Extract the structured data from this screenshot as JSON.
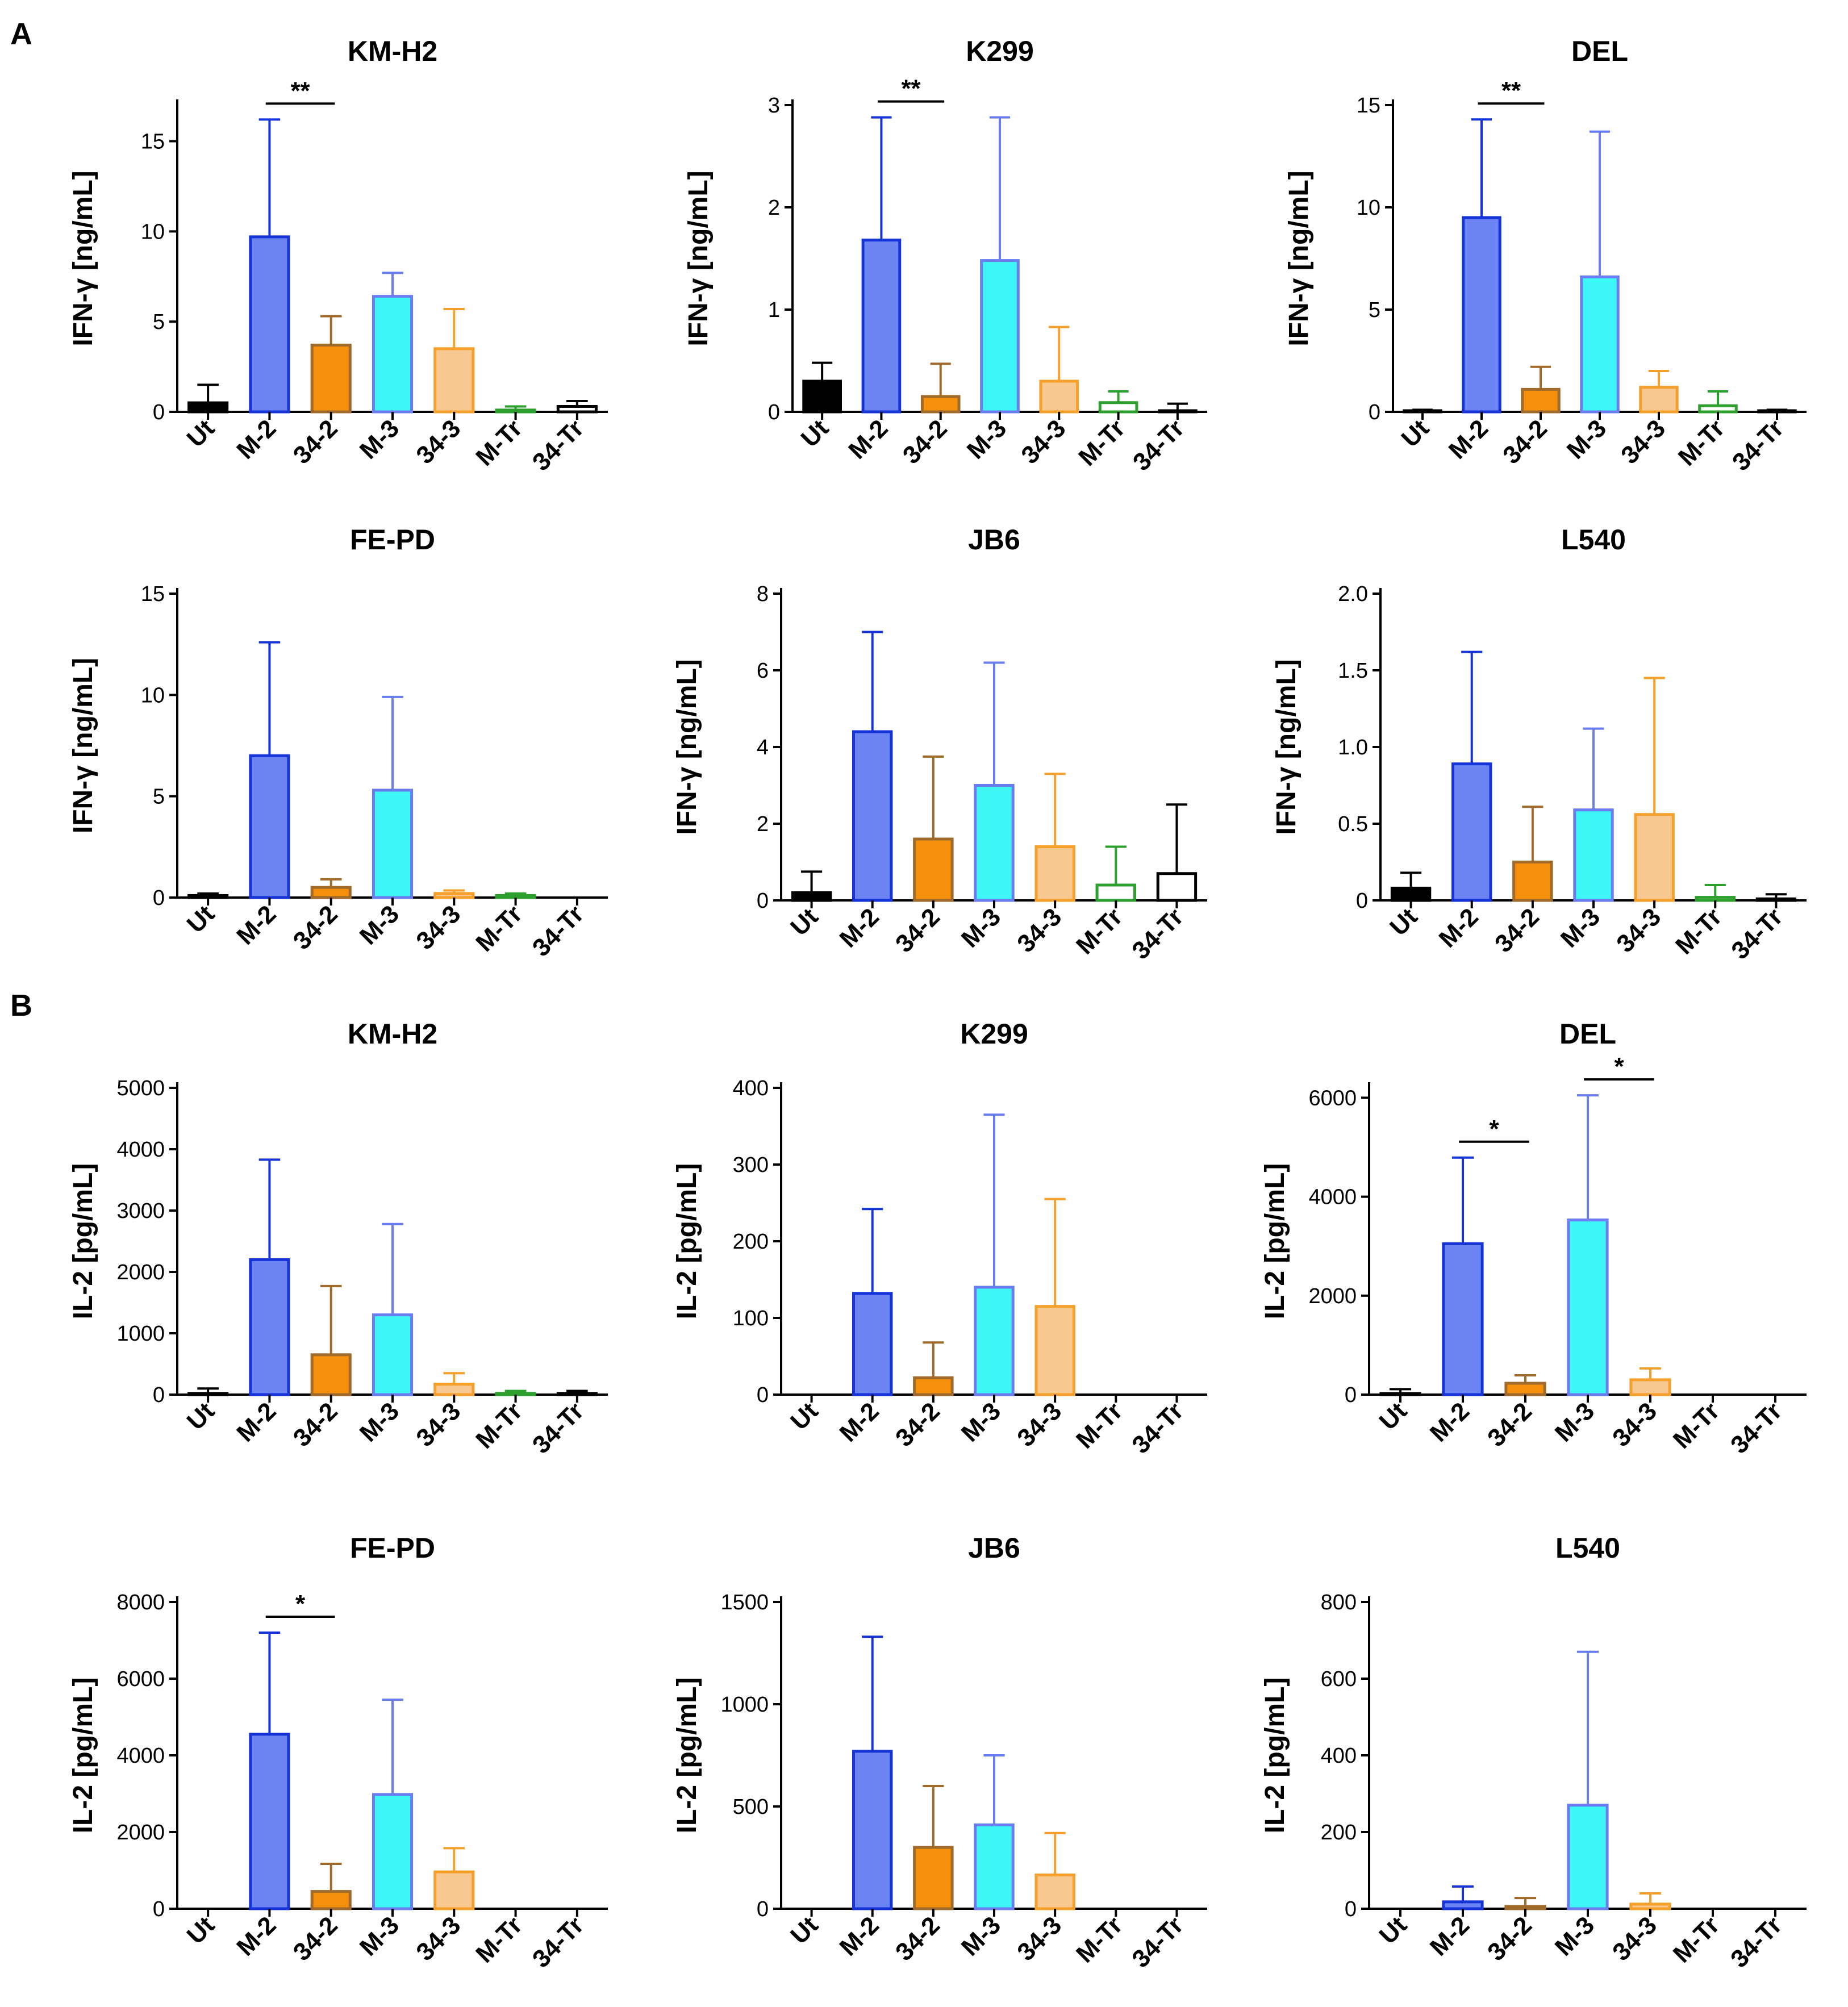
{
  "panel_labels": [
    "A",
    "B"
  ],
  "groups": [
    "Ut",
    "M-2",
    "34-2",
    "M-3",
    "34-3",
    "M-Tr",
    "34-Tr"
  ],
  "colors": {
    "Ut": {
      "stroke": "#000000",
      "fill": "#000000"
    },
    "M-2": {
      "stroke": "#1533d6",
      "fill": "#6b84f2"
    },
    "34-2": {
      "stroke": "#a06a2a",
      "fill": "#f5900c"
    },
    "M-3": {
      "stroke": "#6a7df0",
      "fill": "#3ef6f6"
    },
    "34-3": {
      "stroke": "#f5a02a",
      "fill": "#f7c890"
    },
    "M-Tr": {
      "stroke": "#2ca02c",
      "fill": "#ffffff"
    },
    "34-Tr": {
      "stroke": "#000000",
      "fill": "#ffffff"
    },
    "axis": "#000000"
  },
  "chart_data": [
    {
      "panel": "A",
      "type": "bar",
      "title": "KM-H2",
      "ylabel": "IFN-γ [ng/mL]",
      "ylim": [
        0,
        17
      ],
      "yticks": [
        "0",
        "5",
        "10",
        "15"
      ],
      "ytick_values": [
        0,
        5,
        10,
        15
      ],
      "categories": [
        "Ut",
        "M-2",
        "34-2",
        "M-3",
        "34-3",
        "M-Tr",
        "34-Tr"
      ],
      "values": [
        0.5,
        9.7,
        3.7,
        6.4,
        3.5,
        0.1,
        0.3
      ],
      "errors": [
        1.0,
        6.5,
        1.6,
        1.3,
        2.2,
        0.2,
        0.3
      ],
      "significance": [
        {
          "from": "M-2",
          "to": "34-2",
          "label": "**"
        }
      ]
    },
    {
      "panel": "A",
      "type": "bar",
      "title": "K299",
      "ylabel": "IFN-γ [ng/mL]",
      "ylim": [
        0,
        3
      ],
      "yticks": [
        "0",
        "1",
        "2",
        "3"
      ],
      "ytick_values": [
        0,
        1,
        2,
        3
      ],
      "categories": [
        "Ut",
        "M-2",
        "34-2",
        "M-3",
        "34-3",
        "M-Tr",
        "34-Tr"
      ],
      "values": [
        0.3,
        1.68,
        0.15,
        1.48,
        0.3,
        0.09,
        0.01
      ],
      "errors": [
        0.18,
        1.2,
        0.32,
        1.4,
        0.53,
        0.11,
        0.07
      ],
      "significance": [
        {
          "from": "M-2",
          "to": "34-2",
          "label": "**"
        }
      ]
    },
    {
      "panel": "A",
      "type": "bar",
      "title": "DEL",
      "ylabel": "IFN-γ [ng/mL]",
      "ylim": [
        0,
        15
      ],
      "yticks": [
        "0",
        "5",
        "10",
        "15"
      ],
      "ytick_values": [
        0,
        5,
        10,
        15
      ],
      "categories": [
        "Ut",
        "M-2",
        "34-2",
        "M-3",
        "34-3",
        "M-Tr",
        "34-Tr"
      ],
      "values": [
        0.05,
        9.5,
        1.1,
        6.6,
        1.2,
        0.3,
        0.05
      ],
      "errors": [
        0.05,
        4.8,
        1.1,
        7.1,
        0.8,
        0.7,
        0.05
      ],
      "significance": [
        {
          "from": "M-2",
          "to": "34-2",
          "label": "**"
        }
      ]
    },
    {
      "panel": "A",
      "type": "bar",
      "title": "FE-PD",
      "ylabel": "IFN-γ [ng/mL]",
      "ylim": [
        0,
        15
      ],
      "yticks": [
        "0",
        "5",
        "10",
        "15"
      ],
      "ytick_values": [
        0,
        5,
        10,
        15
      ],
      "categories": [
        "Ut",
        "M-2",
        "34-2",
        "M-3",
        "34-3",
        "M-Tr",
        "34-Tr"
      ],
      "values": [
        0.1,
        7.0,
        0.5,
        5.3,
        0.2,
        0.1,
        0.0
      ],
      "errors": [
        0.1,
        5.6,
        0.4,
        4.6,
        0.15,
        0.1,
        0.0
      ],
      "significance": []
    },
    {
      "panel": "A",
      "type": "bar",
      "title": "JB6",
      "ylabel": "IFN-γ [ng/mL]",
      "ylim": [
        0,
        8
      ],
      "yticks": [
        "0",
        "2",
        "4",
        "6",
        "8"
      ],
      "ytick_values": [
        0,
        2,
        4,
        6,
        8
      ],
      "categories": [
        "Ut",
        "M-2",
        "34-2",
        "M-3",
        "34-3",
        "M-Tr",
        "34-Tr"
      ],
      "values": [
        0.2,
        4.4,
        1.6,
        3.0,
        1.4,
        0.4,
        0.7
      ],
      "errors": [
        0.55,
        2.6,
        2.15,
        3.2,
        1.9,
        1.0,
        1.8
      ],
      "significance": []
    },
    {
      "panel": "A",
      "type": "bar",
      "title": "L540",
      "ylabel": "IFN-γ [ng/mL]",
      "ylim": [
        0,
        2.0
      ],
      "yticks": [
        "0",
        "0.5",
        "1.0",
        "1.5",
        "2.0"
      ],
      "ytick_values": [
        0,
        0.5,
        1.0,
        1.5,
        2.0
      ],
      "categories": [
        "Ut",
        "M-2",
        "34-2",
        "M-3",
        "34-3",
        "M-Tr",
        "34-Tr"
      ],
      "values": [
        0.08,
        0.89,
        0.25,
        0.59,
        0.56,
        0.02,
        0.01
      ],
      "errors": [
        0.1,
        0.73,
        0.36,
        0.53,
        0.89,
        0.08,
        0.03
      ],
      "significance": []
    },
    {
      "panel": "B",
      "type": "bar",
      "title": "KM-H2",
      "ylabel": "IL-2 [pg/mL]",
      "ylim": [
        0,
        5000
      ],
      "yticks": [
        "0",
        "1000",
        "2000",
        "3000",
        "4000",
        "5000"
      ],
      "ytick_values": [
        0,
        1000,
        2000,
        3000,
        4000,
        5000
      ],
      "categories": [
        "Ut",
        "M-2",
        "34-2",
        "M-3",
        "34-3",
        "M-Tr",
        "34-Tr"
      ],
      "values": [
        20,
        2200,
        650,
        1300,
        170,
        20,
        20
      ],
      "errors": [
        80,
        1630,
        1120,
        1480,
        180,
        40,
        40
      ],
      "significance": []
    },
    {
      "panel": "B",
      "type": "bar",
      "title": "K299",
      "ylabel": "IL-2 [pg/mL]",
      "ylim": [
        0,
        400
      ],
      "yticks": [
        "0",
        "100",
        "200",
        "300",
        "400"
      ],
      "ytick_values": [
        0,
        100,
        200,
        300,
        400
      ],
      "categories": [
        "Ut",
        "M-2",
        "34-2",
        "M-3",
        "34-3",
        "M-Tr",
        "34-Tr"
      ],
      "values": [
        0,
        132,
        22,
        140,
        115,
        0,
        0
      ],
      "errors": [
        0,
        110,
        46,
        225,
        140,
        0,
        0
      ],
      "significance": []
    },
    {
      "panel": "B",
      "type": "bar",
      "title": "DEL",
      "ylabel": "IL-2 [pg/mL]",
      "ylim": [
        0,
        6200
      ],
      "yticks": [
        "0",
        "2000",
        "4000",
        "6000"
      ],
      "ytick_values": [
        0,
        2000,
        4000,
        6000
      ],
      "categories": [
        "Ut",
        "M-2",
        "34-2",
        "M-3",
        "34-3",
        "M-Tr",
        "34-Tr"
      ],
      "values": [
        20,
        3050,
        230,
        3530,
        300,
        0,
        0
      ],
      "errors": [
        90,
        1740,
        160,
        2520,
        230,
        0,
        0
      ],
      "significance": [
        {
          "from": "M-2",
          "to": "34-2",
          "label": "*"
        },
        {
          "from": "M-3",
          "to": "34-3",
          "label": "*"
        }
      ]
    },
    {
      "panel": "B",
      "type": "bar",
      "title": "FE-PD",
      "ylabel": "IL-2 [pg/mL]",
      "ylim": [
        0,
        8000
      ],
      "yticks": [
        "0",
        "2000",
        "4000",
        "6000",
        "8000"
      ],
      "ytick_values": [
        0,
        2000,
        4000,
        6000,
        8000
      ],
      "categories": [
        "Ut",
        "M-2",
        "34-2",
        "M-3",
        "34-3",
        "M-Tr",
        "34-Tr"
      ],
      "values": [
        0,
        4550,
        450,
        2980,
        960,
        0,
        0
      ],
      "errors": [
        0,
        2650,
        720,
        2470,
        620,
        0,
        0
      ],
      "significance": [
        {
          "from": "M-2",
          "to": "34-2",
          "label": "*"
        }
      ]
    },
    {
      "panel": "B",
      "type": "bar",
      "title": "JB6",
      "ylabel": "IL-2 [pg/mL]",
      "ylim": [
        0,
        1500
      ],
      "yticks": [
        "0",
        "500",
        "1000",
        "1500"
      ],
      "ytick_values": [
        0,
        500,
        1000,
        1500
      ],
      "categories": [
        "Ut",
        "M-2",
        "34-2",
        "M-3",
        "34-3",
        "M-Tr",
        "34-Tr"
      ],
      "values": [
        0,
        770,
        300,
        410,
        165,
        0,
        0
      ],
      "errors": [
        0,
        560,
        300,
        340,
        205,
        0,
        0
      ],
      "significance": []
    },
    {
      "panel": "B",
      "type": "bar",
      "title": "L540",
      "ylabel": "IL-2 [pg/mL]",
      "ylim": [
        0,
        800
      ],
      "yticks": [
        "0",
        "200",
        "400",
        "600",
        "800"
      ],
      "ytick_values": [
        0,
        200,
        400,
        600,
        800
      ],
      "categories": [
        "Ut",
        "M-2",
        "34-2",
        "M-3",
        "34-3",
        "M-Tr",
        "34-Tr"
      ],
      "values": [
        0,
        18,
        6,
        270,
        12,
        0,
        0
      ],
      "errors": [
        0,
        40,
        22,
        400,
        28,
        0,
        0
      ],
      "significance": []
    }
  ]
}
